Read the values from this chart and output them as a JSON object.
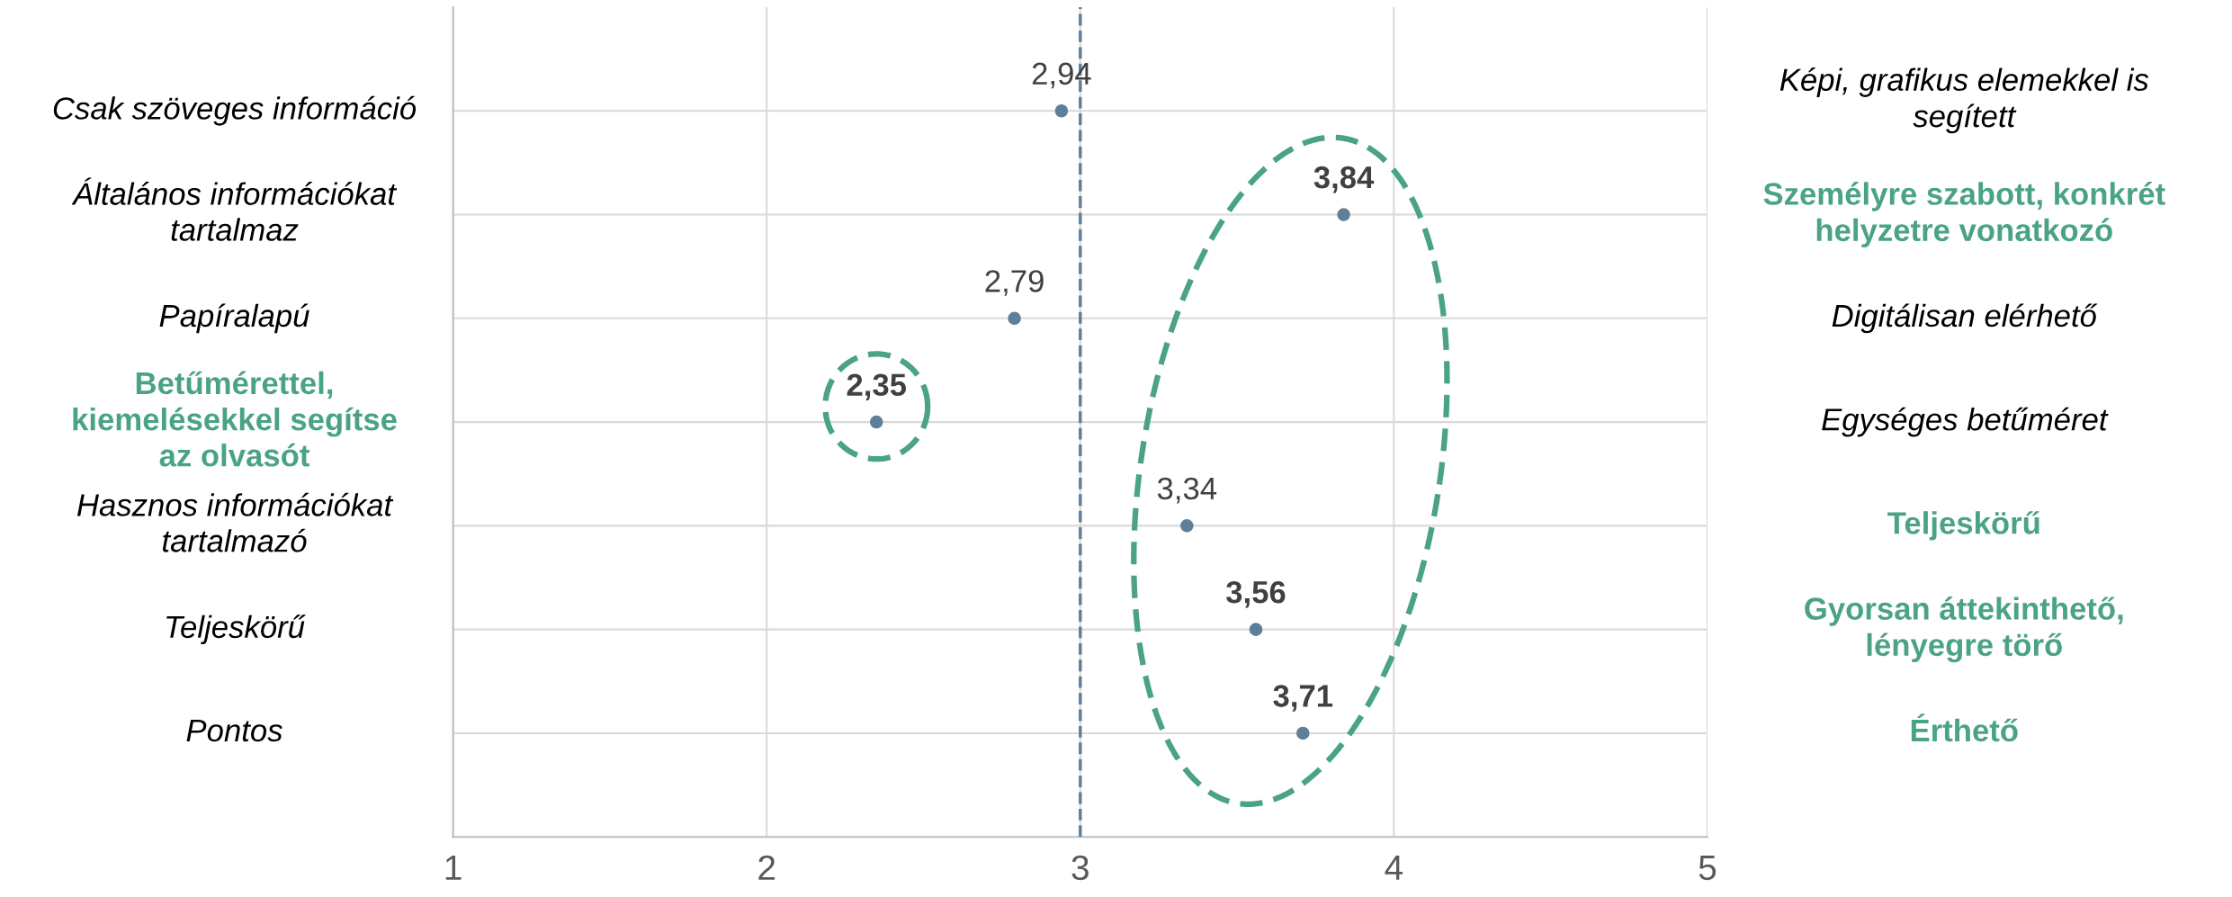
{
  "chart_data": {
    "type": "scatter",
    "orientation": "horizontal",
    "categories": [
      "Csak szöveges információ",
      "Általános információkat\ntartalmaz",
      "Papíralapú",
      "Betűmérettel,\nkiemelésekkel segítse\naz olvasót",
      "Hasznos információkat\ntartalmazó",
      "Teljeskörű",
      "Pontos"
    ],
    "y2_categories": [
      "Képi, grafikus elemekkel is\nsegített",
      "Személyre szabott, konkrét\nhelyzetre vonatkozó",
      "Digitálisan elérhető",
      "Egységes betűméret",
      "Teljeskörű",
      "Gyorsan áttekinthető,\nlényegre törő",
      "Érthető"
    ],
    "values": [
      2.94,
      3.84,
      2.79,
      2.35,
      3.34,
      3.56,
      3.71
    ],
    "value_labels": [
      "2,94",
      "3,84",
      "2,79",
      "2,35",
      "3,34",
      "3,56",
      "3,71"
    ],
    "color": "#5f7f99",
    "marker": "circle",
    "xlim": [
      1,
      5
    ],
    "xticks": [
      1,
      2,
      3,
      4,
      5
    ],
    "grid": true,
    "ref_lines": [
      {
        "axis": "x",
        "value": 3,
        "color": "#5f7f99",
        "line_style": "dashed"
      }
    ]
  }
}
